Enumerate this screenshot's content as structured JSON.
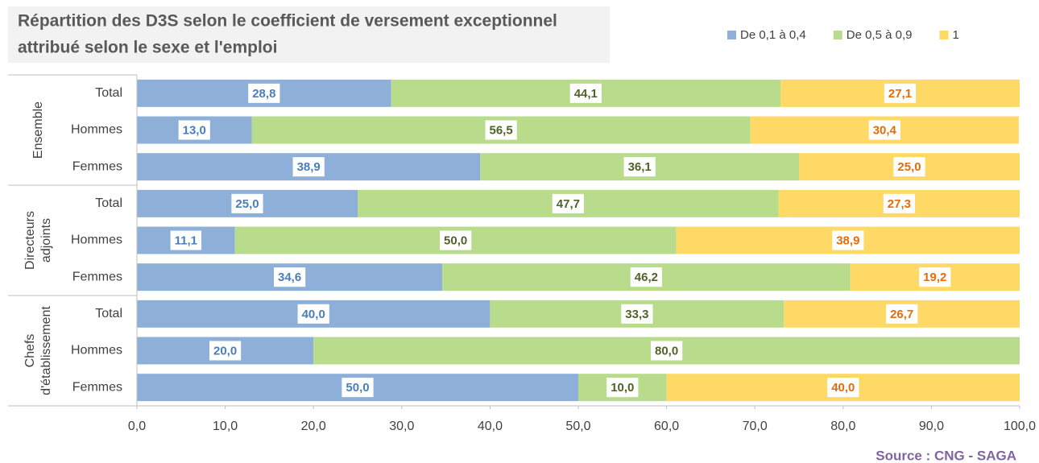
{
  "chart_data": {
    "type": "stacked_barh",
    "title": [
      "Répartition des D3S selon le coefficient de versement exceptionnel",
      "attribué selon le sexe et l'emploi"
    ],
    "source": "Source : CNG - SAGA",
    "groups": [
      [
        "Ensemble"
      ],
      [
        "Directeurs",
        "adjoints"
      ],
      [
        "Chefs",
        "d'établissement"
      ]
    ],
    "categories": [
      "Total",
      "Hommes",
      "Femmes",
      "Total",
      "Hommes",
      "Femmes",
      "Total",
      "Hommes",
      "Femmes"
    ],
    "series": [
      {
        "name": "De 0,1 à 0,4",
        "color": "#8eb0d8",
        "label_color": "#4a7ebb",
        "values": [
          28.8,
          13.0,
          38.9,
          25.0,
          11.1,
          34.6,
          40.0,
          20.0,
          50.0
        ],
        "value_labels": [
          "28,8",
          "13,0",
          "38,9",
          "25,0",
          "11,1",
          "34,6",
          "40,0",
          "20,0",
          "50,0"
        ]
      },
      {
        "name": "De 0,5 à 0,9",
        "color": "#b9dc8c",
        "label_color": "#4f6228",
        "values": [
          44.1,
          56.5,
          36.1,
          47.7,
          50.0,
          46.2,
          33.3,
          80.0,
          10.0
        ],
        "value_labels": [
          "44,1",
          "56,5",
          "36,1",
          "47,7",
          "50,0",
          "46,2",
          "33,3",
          "80,0",
          "10,0"
        ]
      },
      {
        "name": "1",
        "color": "#ffd966",
        "label_color": "#e46c0a",
        "values": [
          27.1,
          30.4,
          25.0,
          27.3,
          38.9,
          19.2,
          26.7,
          0,
          40.0
        ],
        "value_labels": [
          "27,1",
          "30,4",
          "25,0",
          "27,3",
          "38,9",
          "19,2",
          "26,7",
          null,
          "40,0"
        ]
      }
    ],
    "xlim": [
      0,
      100
    ],
    "xticks": [
      {
        "value": 0,
        "label": "0,0"
      },
      {
        "value": 10,
        "label": "10,0"
      },
      {
        "value": 20,
        "label": "20,0"
      },
      {
        "value": 30,
        "label": "30,0"
      },
      {
        "value": 40,
        "label": "40,0"
      },
      {
        "value": 50,
        "label": "50,0"
      },
      {
        "value": 60,
        "label": "60,0"
      },
      {
        "value": 70,
        "label": "70,0"
      },
      {
        "value": 80,
        "label": "80,0"
      },
      {
        "value": 90,
        "label": "90,0"
      },
      {
        "value": 100,
        "label": "100,0"
      }
    ],
    "legend": "top-right"
  }
}
